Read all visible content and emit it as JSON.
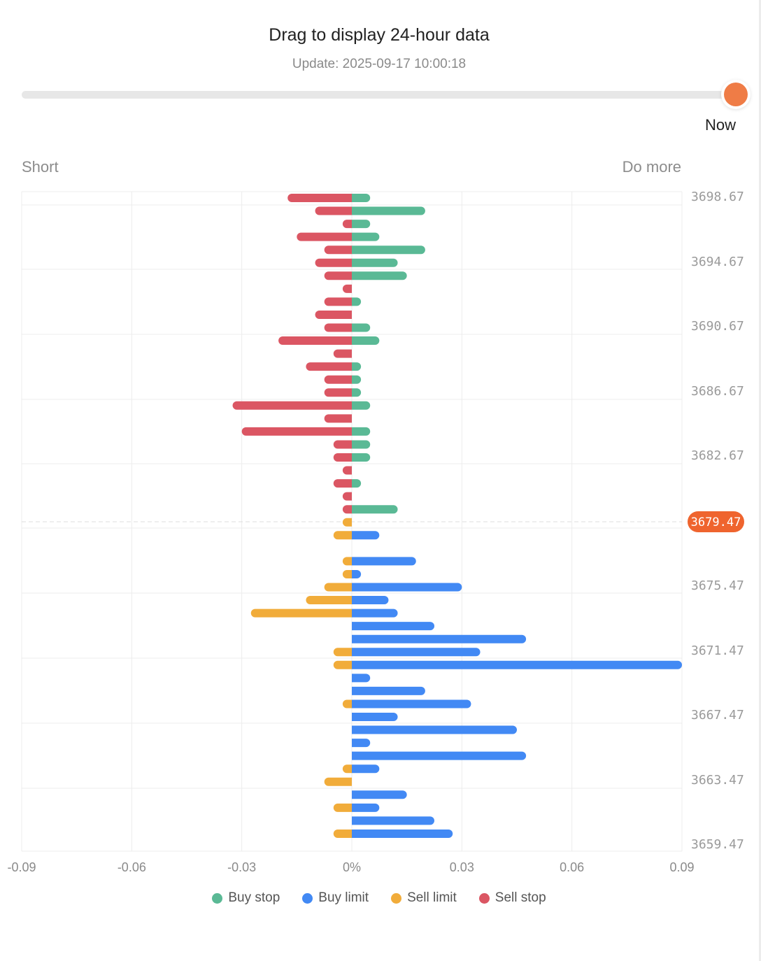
{
  "header": {
    "title": "Drag to display 24-hour data",
    "update": "Update: 2025-09-17 10:00:18"
  },
  "slider": {
    "label": "Now",
    "value": 1.0,
    "color": "#ef7c46"
  },
  "side_labels": {
    "left": "Short",
    "right": "Do more"
  },
  "legend": [
    {
      "name": "Buy stop",
      "color": "#5ab995"
    },
    {
      "name": "Buy limit",
      "color": "#4289f4"
    },
    {
      "name": "Sell limit",
      "color": "#f1ac3a"
    },
    {
      "name": "Sell stop",
      "color": "#db5663"
    }
  ],
  "chart_data": {
    "type": "bar",
    "orientation": "horizontal-diverging",
    "x_ticks": [
      "-0.09",
      "-0.06",
      "-0.03",
      "0%",
      "0.03",
      "0.06",
      "0.09"
    ],
    "xlim": [
      -0.09,
      0.09
    ],
    "ylim": [
      3659.47,
      3698.67
    ],
    "y_ticks": [
      "3698.67",
      "3694.67",
      "3690.67",
      "3686.67",
      "3682.67",
      "3675.47",
      "3671.47",
      "3667.47",
      "3663.47",
      "3659.47"
    ],
    "current_price": "3679.47",
    "current_price_color": "#ef642e",
    "grid": true,
    "legend_position": "bottom",
    "rows": [
      {
        "price": 3698.67,
        "left": -0.0175,
        "right": 0.005,
        "side": "upper"
      },
      {
        "price": 3697.87,
        "left": -0.01,
        "right": 0.02,
        "side": "upper"
      },
      {
        "price": 3697.07,
        "left": -0.0025,
        "right": 0.005,
        "side": "upper"
      },
      {
        "price": 3696.27,
        "left": -0.015,
        "right": 0.0075,
        "side": "upper"
      },
      {
        "price": 3695.47,
        "left": -0.0075,
        "right": 0.02,
        "side": "upper"
      },
      {
        "price": 3694.67,
        "left": -0.01,
        "right": 0.0125,
        "side": "upper"
      },
      {
        "price": 3693.87,
        "left": -0.0075,
        "right": 0.015,
        "side": "upper"
      },
      {
        "price": 3693.07,
        "left": -0.0025,
        "right": 0,
        "side": "upper"
      },
      {
        "price": 3692.27,
        "left": -0.0075,
        "right": 0.0025,
        "side": "upper"
      },
      {
        "price": 3691.47,
        "left": -0.01,
        "right": 0,
        "side": "upper"
      },
      {
        "price": 3690.67,
        "left": -0.0075,
        "right": 0.005,
        "side": "upper"
      },
      {
        "price": 3689.87,
        "left": -0.02,
        "right": 0.0075,
        "side": "upper"
      },
      {
        "price": 3689.07,
        "left": -0.005,
        "right": 0,
        "side": "upper"
      },
      {
        "price": 3688.27,
        "left": -0.0125,
        "right": 0.0025,
        "side": "upper"
      },
      {
        "price": 3687.47,
        "left": -0.0075,
        "right": 0.0025,
        "side": "upper"
      },
      {
        "price": 3686.67,
        "left": -0.0075,
        "right": 0.0025,
        "side": "upper"
      },
      {
        "price": 3685.87,
        "left": -0.0325,
        "right": 0.005,
        "side": "upper"
      },
      {
        "price": 3685.07,
        "left": -0.0075,
        "right": 0,
        "side": "upper"
      },
      {
        "price": 3684.27,
        "left": -0.03,
        "right": 0.005,
        "side": "upper"
      },
      {
        "price": 3683.47,
        "left": -0.005,
        "right": 0.005,
        "side": "upper"
      },
      {
        "price": 3682.67,
        "left": -0.005,
        "right": 0.005,
        "side": "upper"
      },
      {
        "price": 3681.87,
        "left": -0.0025,
        "right": 0,
        "side": "upper"
      },
      {
        "price": 3681.07,
        "left": -0.005,
        "right": 0.0025,
        "side": "upper"
      },
      {
        "price": 3680.27,
        "left": -0.0025,
        "right": 0,
        "side": "upper"
      },
      {
        "price": 3679.47,
        "left": -0.0025,
        "right": 0.0125,
        "side": "upper"
      },
      {
        "price": 3678.67,
        "left": -0.0025,
        "right": 0,
        "side": "lower"
      },
      {
        "price": 3677.87,
        "left": -0.005,
        "right": 0.0075,
        "side": "lower"
      },
      {
        "price": 3677.07,
        "left": 0,
        "right": 0,
        "side": "lower"
      },
      {
        "price": 3676.27,
        "left": -0.0025,
        "right": 0.0175,
        "side": "lower"
      },
      {
        "price": 3675.47,
        "left": -0.0025,
        "right": 0.0025,
        "side": "lower"
      },
      {
        "price": 3674.67,
        "left": -0.0075,
        "right": 0.03,
        "side": "lower"
      },
      {
        "price": 3673.87,
        "left": -0.0125,
        "right": 0.01,
        "side": "lower"
      },
      {
        "price": 3673.07,
        "left": -0.0275,
        "right": 0.0125,
        "side": "lower"
      },
      {
        "price": 3672.27,
        "left": 0,
        "right": 0.0225,
        "side": "lower"
      },
      {
        "price": 3671.47,
        "left": 0,
        "right": 0.0475,
        "side": "lower"
      },
      {
        "price": 3670.67,
        "left": -0.005,
        "right": 0.035,
        "side": "lower"
      },
      {
        "price": 3669.87,
        "left": -0.005,
        "right": 0.09,
        "side": "lower"
      },
      {
        "price": 3669.07,
        "left": 0,
        "right": 0.005,
        "side": "lower"
      },
      {
        "price": 3668.27,
        "left": 0,
        "right": 0.02,
        "side": "lower"
      },
      {
        "price": 3667.47,
        "left": -0.0025,
        "right": 0.0325,
        "side": "lower"
      },
      {
        "price": 3666.67,
        "left": 0,
        "right": 0.0125,
        "side": "lower"
      },
      {
        "price": 3665.87,
        "left": 0,
        "right": 0.045,
        "side": "lower"
      },
      {
        "price": 3665.07,
        "left": 0,
        "right": 0.005,
        "side": "lower"
      },
      {
        "price": 3664.27,
        "left": 0,
        "right": 0.0475,
        "side": "lower"
      },
      {
        "price": 3663.47,
        "left": -0.0025,
        "right": 0.0075,
        "side": "lower"
      },
      {
        "price": 3662.67,
        "left": -0.0075,
        "right": 0,
        "side": "lower"
      },
      {
        "price": 3661.87,
        "left": 0,
        "right": 0.015,
        "side": "lower"
      },
      {
        "price": 3661.07,
        "left": -0.005,
        "right": 0.0075,
        "side": "lower"
      },
      {
        "price": 3660.27,
        "left": 0,
        "right": 0.0225,
        "side": "lower"
      },
      {
        "price": 3659.47,
        "left": -0.005,
        "right": 0.0275,
        "side": "lower"
      }
    ]
  }
}
